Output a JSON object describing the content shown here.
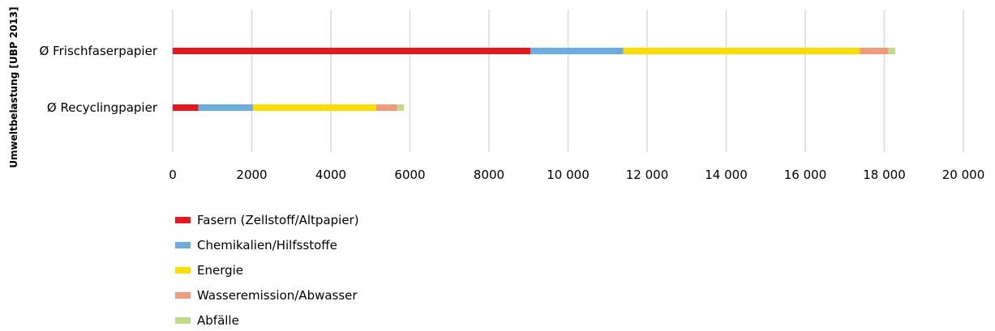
{
  "chart_data": {
    "type": "bar",
    "orientation": "horizontal",
    "stacked": true,
    "ylabel": "Umweltbelastung [UBP 2013]",
    "xlim": [
      0,
      20000
    ],
    "xticks": [
      0,
      2000,
      4000,
      6000,
      8000,
      10000,
      12000,
      14000,
      16000,
      18000,
      20000
    ],
    "xtick_labels": [
      "0",
      "2000",
      "4000",
      "6000",
      "8000",
      "10 000",
      "12 000",
      "14 000",
      "16 000",
      "18 000",
      "20 000"
    ],
    "grid": true,
    "legend_position": "bottom-left",
    "categories": [
      "Ø Frischfaserpapier",
      "Ø Recyclingpapier"
    ],
    "series": [
      {
        "name": "Fasern (Zellstoff/Altpapier)",
        "color": "#e3191e",
        "values": [
          9050,
          650
        ]
      },
      {
        "name": "Chemikalien/Hilfsstoffe",
        "color": "#6badde",
        "values": [
          2350,
          1380
        ]
      },
      {
        "name": "Energie",
        "color": "#fcdd00",
        "values": [
          5980,
          3120
        ]
      },
      {
        "name": "Wasseremission/Abwasser",
        "color": "#f19b7c",
        "values": [
          720,
          530
        ]
      },
      {
        "name": "Abfälle",
        "color": "#c5d98a",
        "values": [
          180,
          170
        ]
      }
    ]
  }
}
